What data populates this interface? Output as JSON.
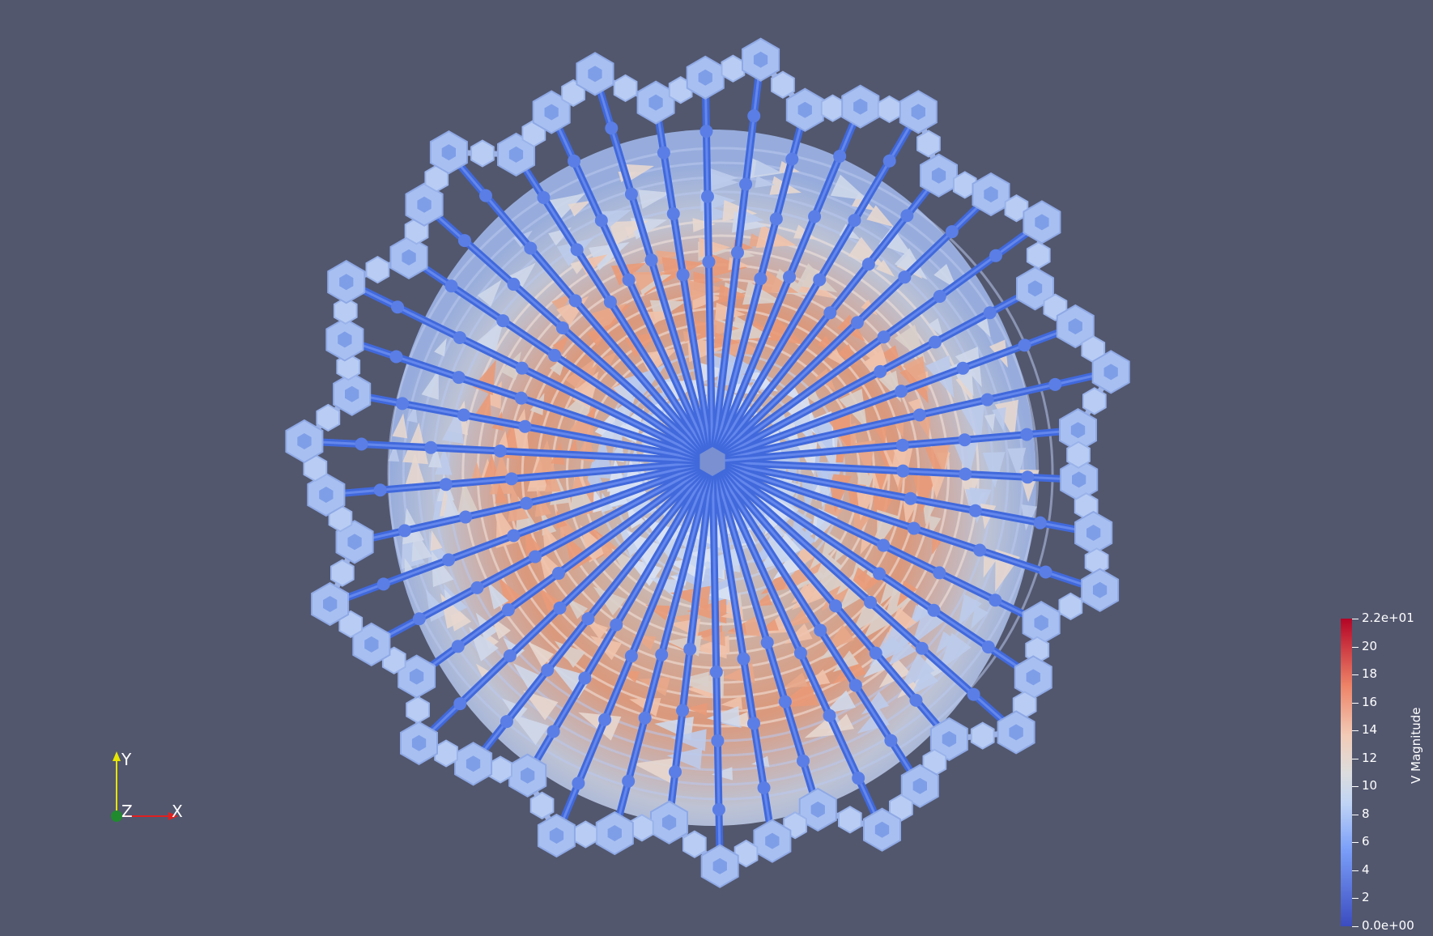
{
  "viewport": {
    "background": "#52576e",
    "scene_description_colors": {
      "low": "#3b4cc0",
      "mid": "#dddddd",
      "high": "#b40426"
    }
  },
  "colorbar": {
    "title": "V Magnitude",
    "range": [
      0,
      22
    ],
    "ticks": [
      {
        "value": 22,
        "label": "2.2e+01"
      },
      {
        "value": 20,
        "label": "20"
      },
      {
        "value": 18,
        "label": "18"
      },
      {
        "value": 16,
        "label": "16"
      },
      {
        "value": 14,
        "label": "14"
      },
      {
        "value": 12,
        "label": "12"
      },
      {
        "value": 10,
        "label": "10"
      },
      {
        "value": 8,
        "label": "8"
      },
      {
        "value": 6,
        "label": "6"
      },
      {
        "value": 4,
        "label": "4"
      },
      {
        "value": 2,
        "label": "2"
      },
      {
        "value": 0,
        "label": "0.0e+00"
      }
    ]
  },
  "orientation_axes": {
    "x_label": "X",
    "y_label": "Y",
    "z_label": "Z",
    "x_color": "#e02020",
    "y_color": "#e6e600",
    "z_color": "#1f8a2e"
  }
}
